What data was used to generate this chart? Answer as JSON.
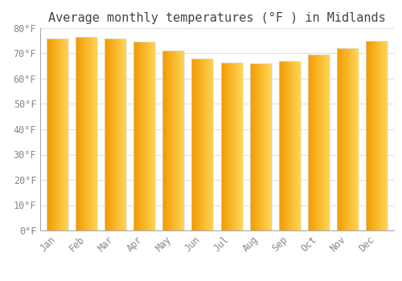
{
  "title": "Average monthly temperatures (°F ) in Midlands",
  "months": [
    "Jan",
    "Feb",
    "Mar",
    "Apr",
    "May",
    "Jun",
    "Jul",
    "Aug",
    "Sep",
    "Oct",
    "Nov",
    "Dec"
  ],
  "values": [
    76.0,
    76.5,
    76.0,
    74.5,
    71.0,
    68.0,
    66.5,
    66.0,
    67.0,
    69.5,
    72.0,
    75.0
  ],
  "bar_color_left": "#F5A800",
  "bar_color_right": "#FFD050",
  "bar_edge_color": "#DDDDDD",
  "background_color": "#FFFFFF",
  "grid_color": "#E0E0E0",
  "text_color": "#888888",
  "title_color": "#444444",
  "ylim": [
    0,
    80
  ],
  "yticks": [
    0,
    10,
    20,
    30,
    40,
    50,
    60,
    70,
    80
  ],
  "ytick_labels": [
    "0°F",
    "10°F",
    "20°F",
    "30°F",
    "40°F",
    "50°F",
    "60°F",
    "70°F",
    "80°F"
  ],
  "title_fontsize": 11,
  "tick_fontsize": 8.5,
  "bar_width": 0.75
}
